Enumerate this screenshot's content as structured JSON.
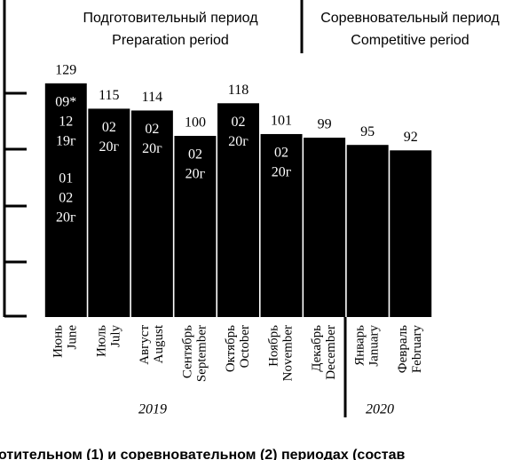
{
  "chart_data": {
    "type": "bar",
    "header": {
      "left_ru": "Подготовительный период",
      "left_en": "Preparation period",
      "right_ru": "Соревновательный период",
      "right_en": "Competitive period"
    },
    "categories_ru": [
      "Июнь",
      "Июль",
      "Август",
      "Сентябрь",
      "Октябрь",
      "Ноябрь",
      "Декабрь",
      "Январь",
      "Февраль"
    ],
    "categories_en": [
      "June",
      "July",
      "August",
      "September",
      "October",
      "November",
      "December",
      "January",
      "February"
    ],
    "values": [
      129,
      115,
      114,
      100,
      118,
      101,
      99,
      95,
      92
    ],
    "inner_labels": [
      [
        [
          "09*",
          "12",
          "19г"
        ],
        [
          "01",
          "02",
          "20г"
        ]
      ],
      [
        [
          "02",
          "20г"
        ]
      ],
      [
        [
          "02",
          "20г"
        ]
      ],
      [
        [
          "02",
          "20г"
        ]
      ],
      [
        [
          "02",
          "20г"
        ]
      ],
      [
        [
          "02",
          "20г"
        ]
      ],
      [],
      [],
      []
    ],
    "years": [
      "2019",
      "2020"
    ],
    "color": "#000000",
    "ylim": [
      0,
      175
    ],
    "caption": "отительном (1) и соревновательном (2) периодах (состав"
  }
}
